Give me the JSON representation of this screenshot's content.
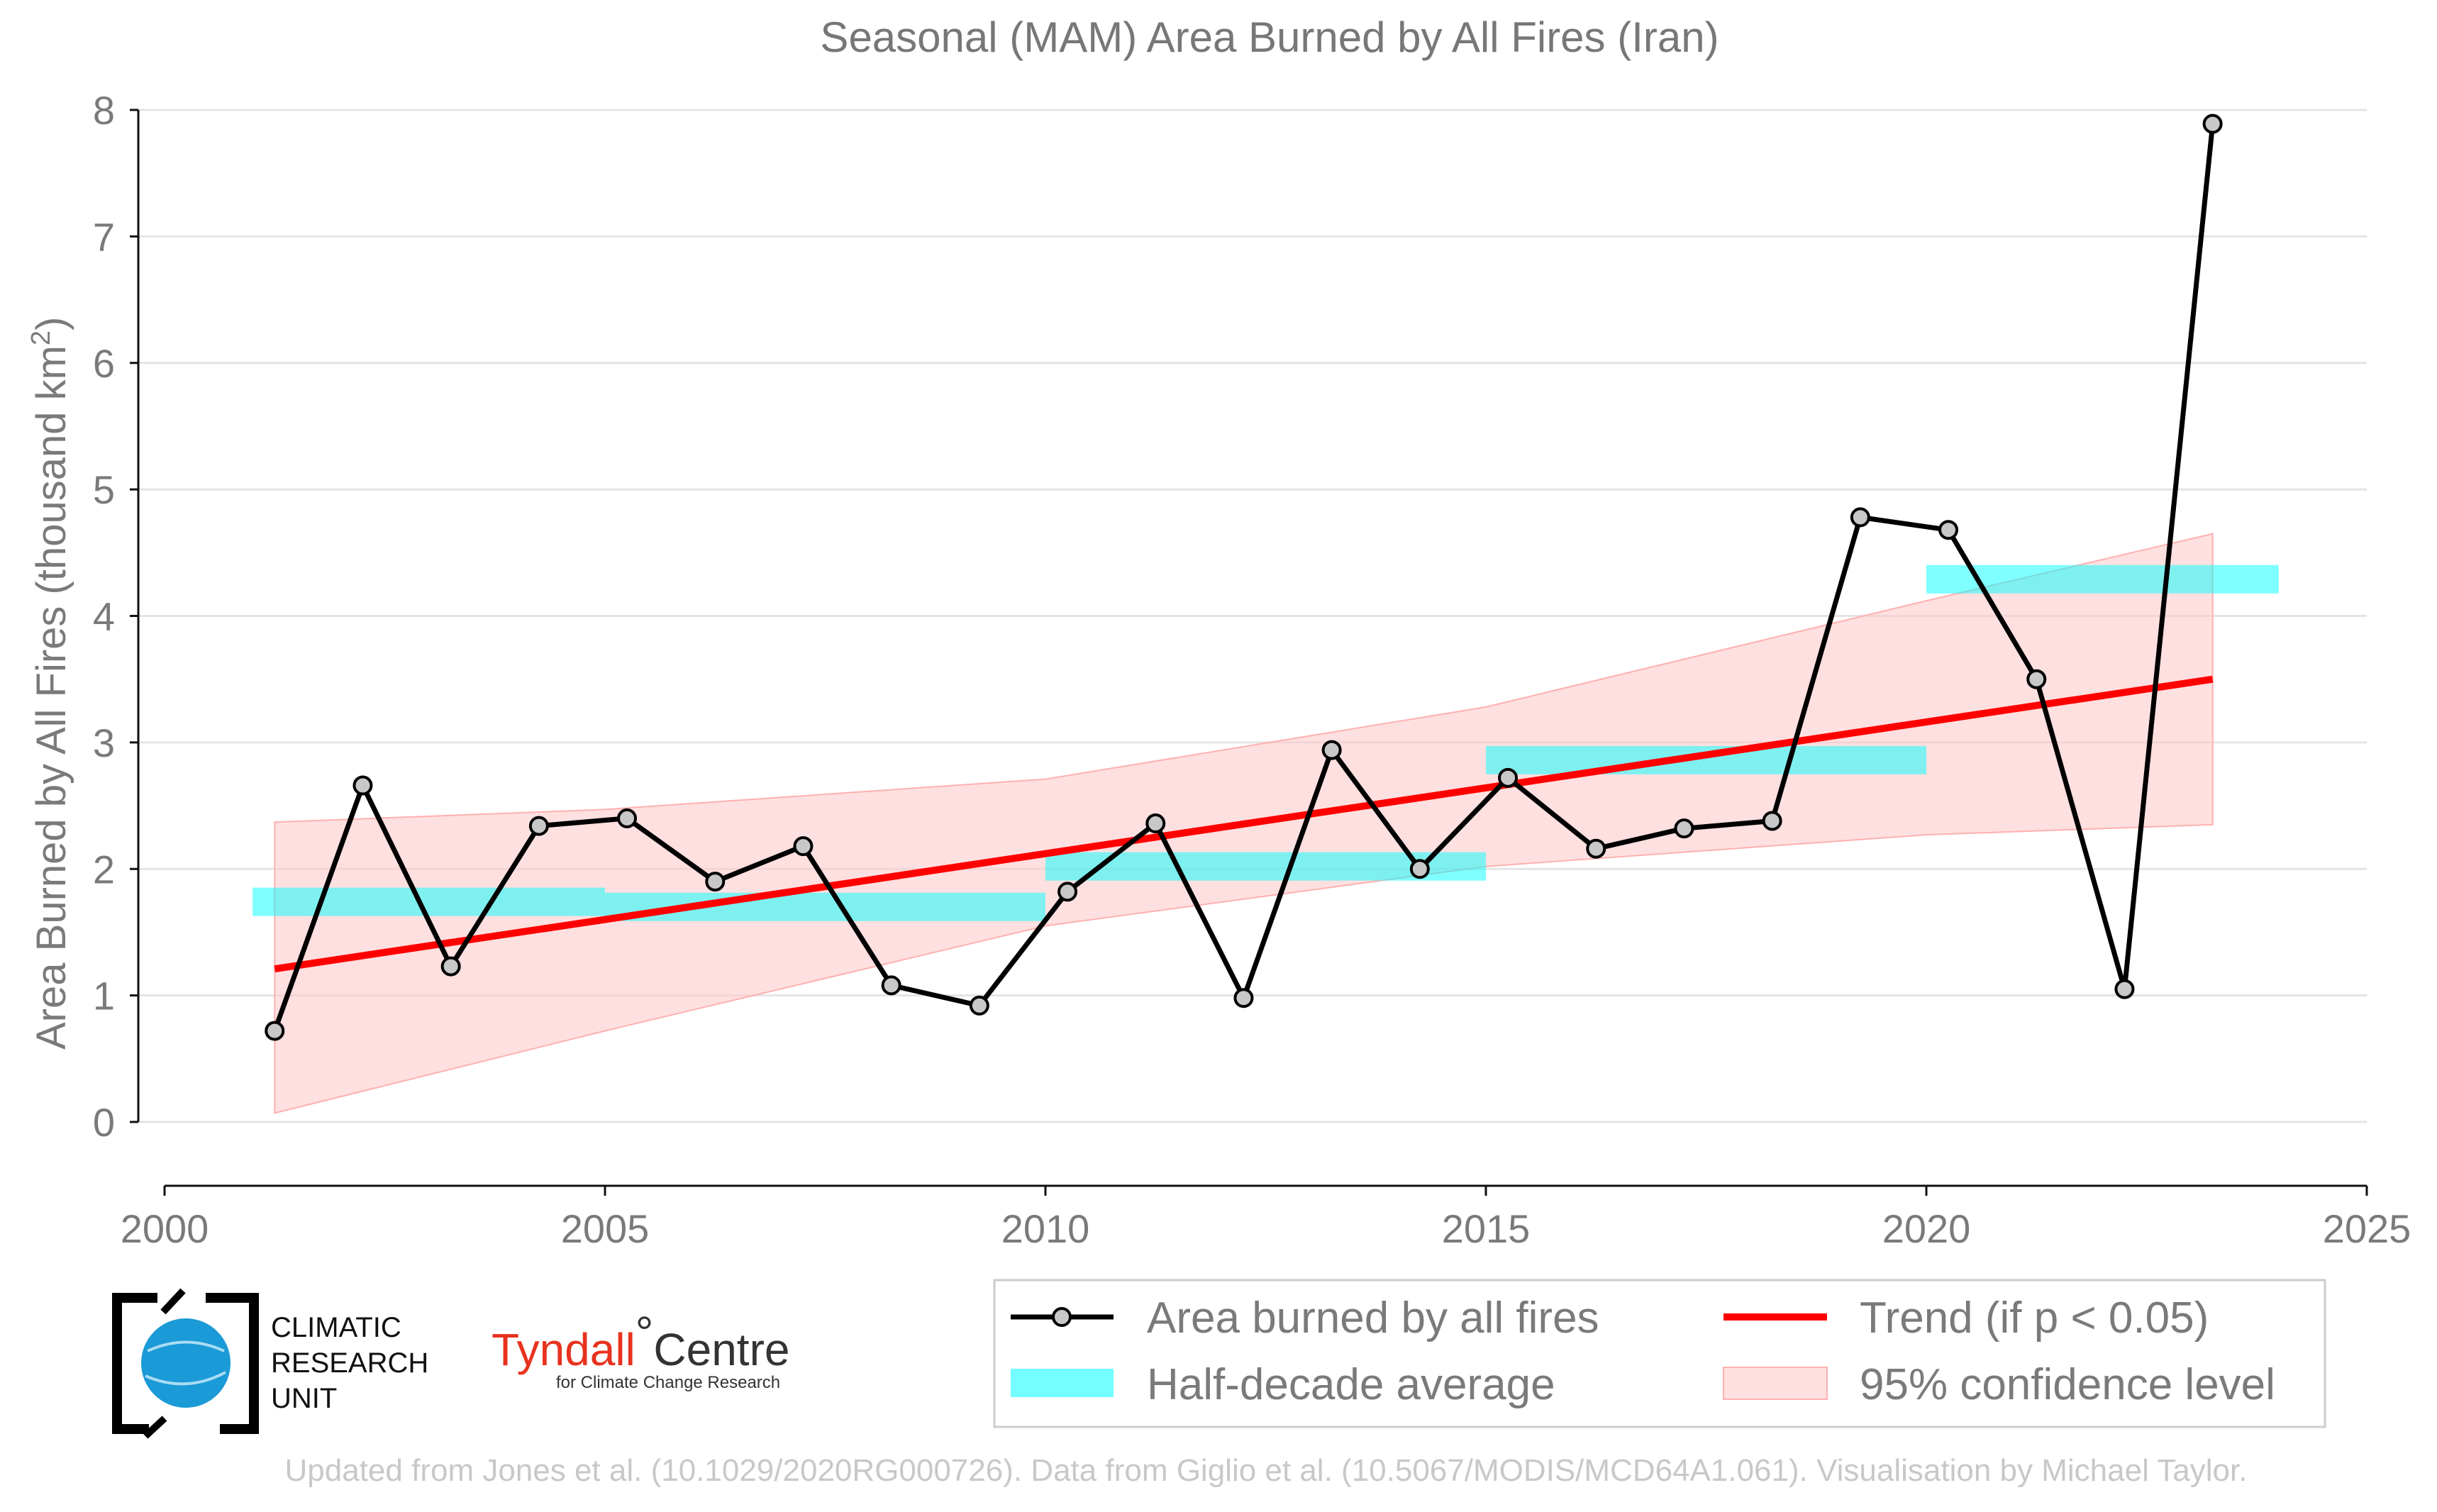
{
  "chart_data": {
    "type": "line",
    "title": "Seasonal (MAM) Area Burned by All Fires (Iran)",
    "ylabel": "Area Burned by All Fires (thousand km",
    "ylabel_sup": "2",
    "ylabel_close": ")",
    "xlim": [
      2000,
      2025
    ],
    "ylim": [
      0,
      8
    ],
    "xticks": [
      "2000",
      "2005",
      "2010",
      "2015",
      "2020",
      "2025"
    ],
    "yticks": [
      "0",
      "1",
      "2",
      "3",
      "4",
      "5",
      "6",
      "7",
      "8"
    ],
    "grid": true,
    "series": [
      {
        "name": "Area burned by all fires",
        "color": "#000000",
        "x": [
          2001.25,
          2002.25,
          2003.25,
          2004.25,
          2005.25,
          2006.25,
          2007.25,
          2008.25,
          2009.25,
          2010.25,
          2011.25,
          2012.25,
          2013.25,
          2014.25,
          2015.25,
          2016.25,
          2017.25,
          2018.25,
          2019.25,
          2020.25,
          2021.25,
          2022.25,
          2023.25
        ],
        "y": [
          0.72,
          2.66,
          1.23,
          2.34,
          2.4,
          1.9,
          2.18,
          1.08,
          0.92,
          1.82,
          2.36,
          0.98,
          2.94,
          2.0,
          2.72,
          2.16,
          2.32,
          2.38,
          4.78,
          4.68,
          3.5,
          1.05,
          7.89
        ]
      },
      {
        "name": "Half-decade average",
        "color": "#00ffff",
        "segments": [
          {
            "x0": 2001.0,
            "x1": 2005.0,
            "y": 1.74
          },
          {
            "x0": 2005.0,
            "x1": 2010.0,
            "y": 1.7
          },
          {
            "x0": 2010.0,
            "x1": 2015.0,
            "y": 2.02
          },
          {
            "x0": 2015.0,
            "x1": 2020.0,
            "y": 2.86
          },
          {
            "x0": 2020.0,
            "x1": 2024.0,
            "y": 4.29
          }
        ]
      },
      {
        "name": "Trend (if p < 0.05)",
        "color": "#ff0000",
        "x": [
          2001.25,
          2023.25
        ],
        "y": [
          1.21,
          3.5
        ]
      },
      {
        "name": "95% confidence level",
        "color": "#ffc8c8",
        "x": [
          2001.25,
          2005,
          2010,
          2015,
          2020,
          2023.25
        ],
        "lower": [
          0.07,
          0.72,
          1.55,
          2.02,
          2.27,
          2.35
        ],
        "upper": [
          2.37,
          2.47,
          2.71,
          3.28,
          4.12,
          4.65
        ]
      }
    ]
  },
  "logos": {
    "cru": [
      "CLIMATIC",
      "RESEARCH",
      "UNIT"
    ],
    "tyndall_brand": "Tyndall",
    "tyndall_degree": "°",
    "tyndall_centre": "Centre",
    "tyndall_sub": "for Climate Change Research"
  },
  "footer": "Updated from Jones et al. (10.1029/2020RG000726). Data from Giglio et al. (10.5067/MODIS/MCD64A1.061). Visualisation by Michael Taylor."
}
